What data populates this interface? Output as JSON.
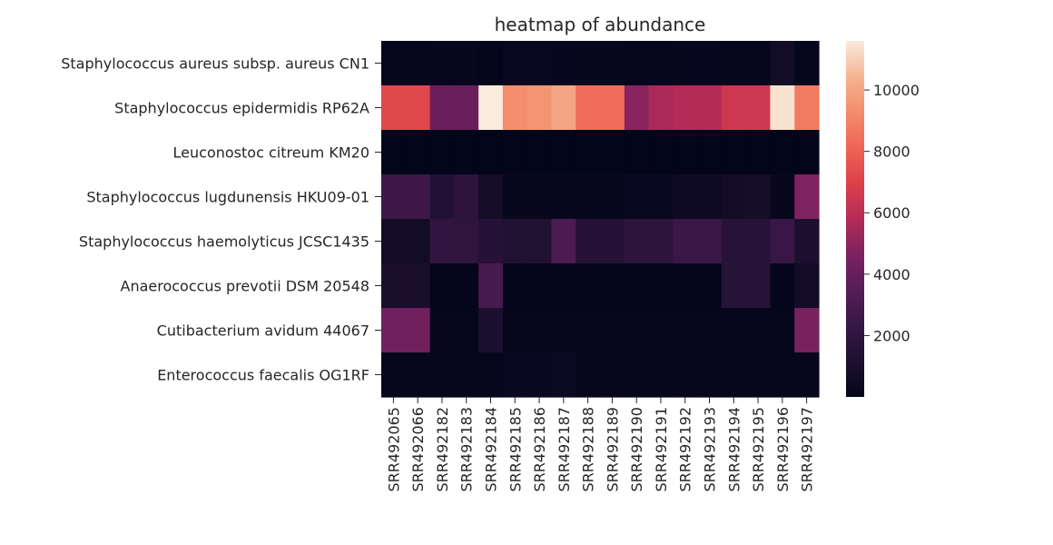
{
  "chart_data": {
    "type": "heatmap",
    "title": "heatmap of abundance",
    "xlabel": "",
    "ylabel": "",
    "colormap": "rocket",
    "colorbar": {
      "min": 0,
      "max": 11600,
      "ticks": [
        2000,
        4000,
        6000,
        8000,
        10000
      ]
    },
    "x": [
      "SRR492065",
      "SRR492066",
      "SRR492182",
      "SRR492183",
      "SRR492184",
      "SRR492185",
      "SRR492186",
      "SRR492187",
      "SRR492188",
      "SRR492189",
      "SRR492190",
      "SRR492191",
      "SRR492192",
      "SRR492193",
      "SRR492194",
      "SRR492195",
      "SRR492196",
      "SRR492197"
    ],
    "y": [
      "Staphylococcus aureus subsp. aureus CN1",
      "Staphylococcus epidermidis RP62A",
      "Leuconostoc citreum KM20",
      "Staphylococcus lugdunensis HKU09-01",
      "Staphylococcus haemolyticus JCSC1435",
      "Anaerococcus prevotii DSM 20548",
      "Cutibacterium avidum 44067",
      "Enterococcus faecalis OG1RF"
    ],
    "values": [
      [
        150,
        150,
        200,
        200,
        100,
        300,
        300,
        250,
        200,
        200,
        150,
        150,
        200,
        250,
        150,
        150,
        700,
        150
      ],
      [
        7200,
        7200,
        4100,
        4100,
        11600,
        9300,
        9500,
        10000,
        8400,
        8400,
        4900,
        5600,
        5800,
        5800,
        6500,
        6500,
        11400,
        8800
      ],
      [
        20,
        20,
        20,
        20,
        20,
        20,
        20,
        20,
        20,
        20,
        20,
        20,
        20,
        20,
        20,
        20,
        20,
        20
      ],
      [
        2500,
        2500,
        1400,
        1800,
        800,
        200,
        200,
        200,
        200,
        200,
        300,
        300,
        500,
        500,
        700,
        800,
        200,
        4700
      ],
      [
        700,
        700,
        2000,
        1900,
        1500,
        1300,
        1300,
        3100,
        1500,
        1500,
        1800,
        1800,
        2400,
        2400,
        1600,
        1600,
        2300,
        1100
      ],
      [
        1000,
        1000,
        100,
        100,
        2900,
        100,
        100,
        100,
        100,
        100,
        100,
        100,
        100,
        100,
        1600,
        1600,
        100,
        700
      ],
      [
        4300,
        4300,
        150,
        150,
        1100,
        150,
        150,
        150,
        150,
        150,
        150,
        150,
        150,
        150,
        150,
        150,
        150,
        4500
      ],
      [
        150,
        150,
        150,
        150,
        150,
        300,
        300,
        400,
        200,
        200,
        150,
        150,
        200,
        200,
        150,
        150,
        150,
        150
      ]
    ]
  }
}
